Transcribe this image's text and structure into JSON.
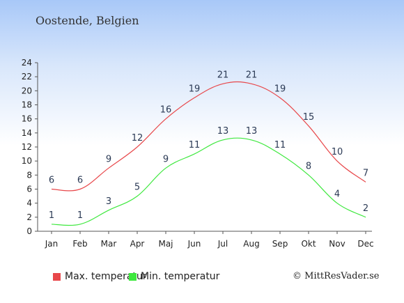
{
  "location": "Oostende, Belgien",
  "copyright": "© MittResVader.se",
  "colors": {
    "max": "#e8474a",
    "min": "#3ee83e",
    "axis": "#555555"
  },
  "chart_data": {
    "type": "line",
    "categories": [
      "Jan",
      "Feb",
      "Mar",
      "Apr",
      "Maj",
      "Jun",
      "Jul",
      "Aug",
      "Sep",
      "Okt",
      "Nov",
      "Dec"
    ],
    "y_ticks": [
      "0",
      "2",
      "4",
      "6",
      "8",
      "10",
      "12",
      "14",
      "16",
      "18",
      "20",
      "22",
      "24"
    ],
    "ylim": [
      0,
      24
    ],
    "grid": false,
    "legend_position": "bottom",
    "series": [
      {
        "name": "Max. temperatur",
        "color": "#e8474a",
        "values": [
          6,
          6,
          9,
          12,
          16,
          19,
          21,
          21,
          19,
          15,
          10,
          7
        ]
      },
      {
        "name": "Min. temperatur",
        "color": "#3ee83e",
        "values": [
          1,
          1,
          3,
          5,
          9,
          11,
          13,
          13,
          11,
          8,
          4,
          2
        ]
      }
    ]
  }
}
